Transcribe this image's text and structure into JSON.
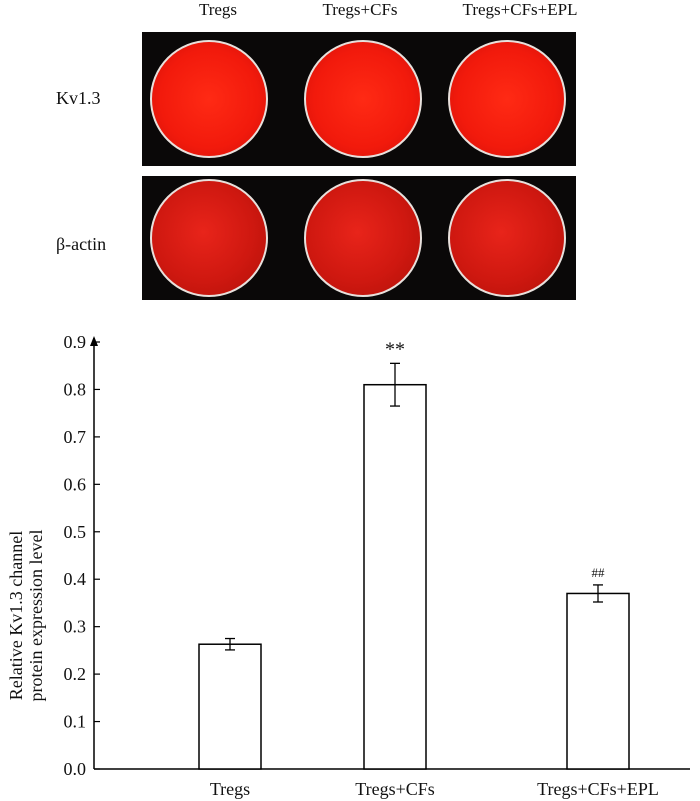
{
  "blot": {
    "columns": [
      "Tregs",
      "Tregs+CFs",
      "Tregs+CFs+EPL"
    ],
    "rows": [
      "Kv1.3",
      "β-actin"
    ]
  },
  "chart_data": {
    "type": "bar",
    "categories": [
      "Tregs",
      "Tregs+CFs",
      "Tregs+CFs+EPL"
    ],
    "values": [
      0.263,
      0.81,
      0.37
    ],
    "errors": [
      0.012,
      0.045,
      0.018
    ],
    "annotations": [
      "",
      "**",
      "##"
    ],
    "ylabel": "Relative Kv1.3 channel protein expression level",
    "ylim": [
      0,
      0.9
    ],
    "yticks": [
      "0.0",
      "0.1",
      "0.2",
      "0.3",
      "0.4",
      "0.5",
      "0.6",
      "0.7",
      "0.8",
      "0.9"
    ],
    "bar_fill": "#ffffff",
    "bar_stroke": "#000000"
  }
}
